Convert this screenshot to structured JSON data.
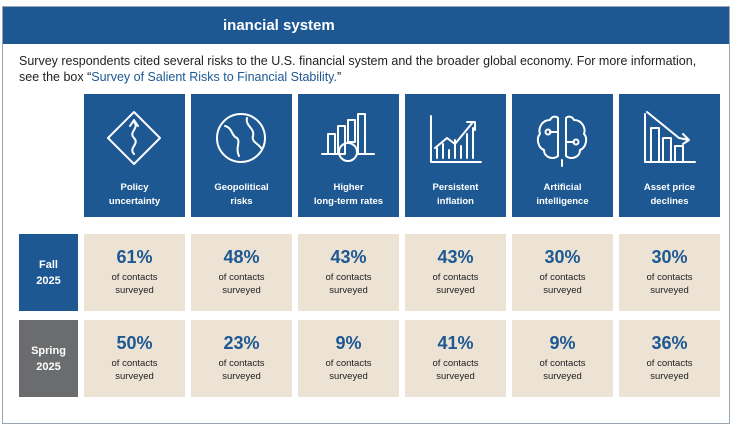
{
  "header": {
    "title": "inancial system"
  },
  "intro": {
    "text": "Survey respondents cited several risks to the U.S. financial system and the broader global economy. For more information, see the box “",
    "link": "Survey of Salient Risks to Financial Stability.",
    "end": "”"
  },
  "columns": [
    "Policy\nuncertainty",
    "Geopolitical\nrisks",
    "Higher\nlong-term rates",
    "Persistent\ninflation",
    "Artificial\nintelligence",
    "Asset price\ndeclines"
  ],
  "cell_note": "of contacts\nsurveyed",
  "rows": [
    {
      "label": "Fall\n2025",
      "values": [
        "61%",
        "48%",
        "43%",
        "43%",
        "30%",
        "30%"
      ]
    },
    {
      "label": "Spring\n2025",
      "values": [
        "50%",
        "23%",
        "9%",
        "41%",
        "9%",
        "36%"
      ]
    }
  ]
}
